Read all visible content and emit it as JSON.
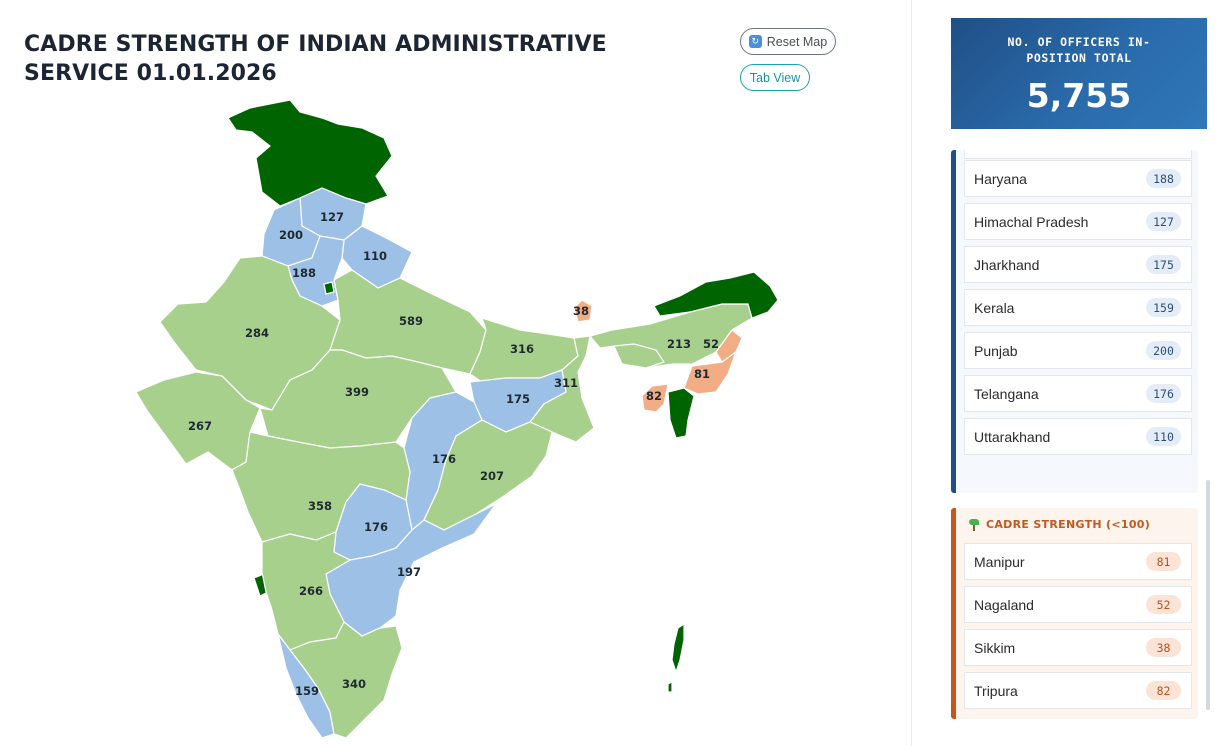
{
  "header": {
    "title": "CADRE STRENGTH OF INDIAN ADMINISTRATIVE SERVICE 01.01.2026",
    "reset_label": "Reset Map",
    "tab_view_label": "Tab View"
  },
  "total": {
    "label": "NO. OF OFFICERS IN-POSITION TOTAL",
    "value": "5,755"
  },
  "colors": {
    "green": "#a8d08d",
    "blue": "#9dc0e6",
    "orange": "#f2ad85",
    "dark_green": "#006400",
    "card_blue": "#1f4f86",
    "card_orange": "#c8561f"
  },
  "map_labels": [
    "127",
    "200",
    "110",
    "188",
    "284",
    "589",
    "316",
    "311",
    "213",
    "52",
    "81",
    "82",
    "38",
    "399",
    "175",
    "267",
    "176",
    "207",
    "358",
    "176",
    "197",
    "266",
    "159",
    "340"
  ],
  "groups": {
    "mid": {
      "items": [
        {
          "name": "Haryana",
          "value": "188"
        },
        {
          "name": "Himachal Pradesh",
          "value": "127"
        },
        {
          "name": "Jharkhand",
          "value": "175"
        },
        {
          "name": "Kerala",
          "value": "159"
        },
        {
          "name": "Punjab",
          "value": "200"
        },
        {
          "name": "Telangana",
          "value": "176"
        },
        {
          "name": "Uttarakhand",
          "value": "110"
        }
      ]
    },
    "low": {
      "title": "CADRE STRENGTH (<100)",
      "items": [
        {
          "name": "Manipur",
          "value": "81"
        },
        {
          "name": "Nagaland",
          "value": "52"
        },
        {
          "name": "Sikkim",
          "value": "38"
        },
        {
          "name": "Tripura",
          "value": "82"
        }
      ]
    }
  }
}
